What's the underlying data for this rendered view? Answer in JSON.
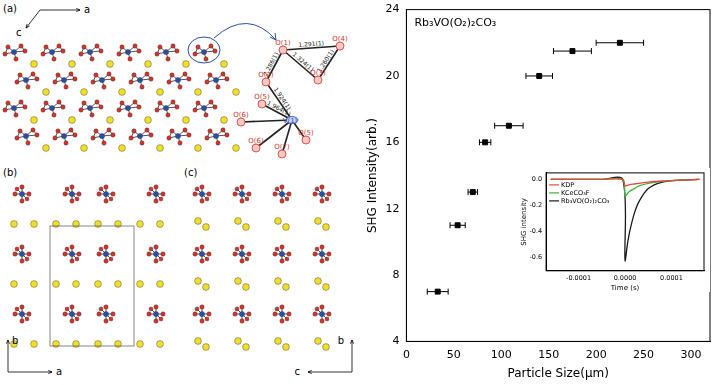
{
  "chart_data": [
    {
      "type": "scatter",
      "title": "Rb₃VO(O₂)₂CO₃",
      "x_label": "Particle Size(μm)",
      "y_label": "SHG Intensity(arb.)",
      "x": [
        33,
        54,
        70,
        83,
        108,
        140,
        175,
        225
      ],
      "values": [
        7,
        11,
        13,
        16,
        17,
        20,
        21.5,
        22
      ],
      "x_error": [
        11,
        8,
        5,
        6,
        15,
        14,
        20,
        25
      ],
      "color": "#000000",
      "marker": "square",
      "xlim": [
        0,
        320
      ],
      "xticks": [
        0,
        50,
        100,
        150,
        200,
        250,
        300
      ],
      "ylim": [
        4,
        24
      ],
      "yticks": [
        4,
        8,
        12,
        16,
        20,
        24
      ],
      "grid": false
    },
    {
      "type": "line",
      "x_label": "Time (s)",
      "y_label": "SHG intensity",
      "x": [
        -0.00016,
        -0.0001,
        -5e-05,
        -5e-06,
        0,
        5e-06,
        1e-05,
        2e-05,
        3e-05,
        5e-05,
        8e-05,
        0.00012,
        0.00016
      ],
      "series": [
        {
          "name": "KDP",
          "color": "#e8483c",
          "values": [
            0,
            0,
            0,
            0,
            -0.05,
            -0.045,
            -0.04,
            -0.035,
            -0.03,
            -0.02,
            -0.012,
            -0.005,
            0
          ]
        },
        {
          "name": "KCeCO₃F",
          "color": "#3cb43c",
          "values": [
            0,
            0,
            0,
            0,
            -0.13,
            -0.11,
            -0.09,
            -0.07,
            -0.05,
            -0.03,
            -0.015,
            -0.005,
            0
          ]
        },
        {
          "name": "Rb₃VO(O₂)₂CO₃",
          "color": "#1a1a1a",
          "values": [
            0,
            0,
            0,
            0,
            -0.62,
            -0.5,
            -0.4,
            -0.26,
            -0.17,
            -0.07,
            -0.02,
            -0.005,
            0
          ]
        }
      ],
      "xlim": [
        -0.00017,
        0.00017
      ],
      "xticks": [
        -0.0001,
        {
          "value": 0,
          "label": "0.0000"
        },
        0.0001
      ],
      "ylim": [
        -0.7,
        0.05
      ],
      "yticks": [
        {
          "value": 0,
          "label": "0.0"
        },
        -0.2,
        -0.4,
        -0.6
      ],
      "legend": "upper left",
      "grid": false
    }
  ],
  "structure_panels": [
    {
      "label": "(a)",
      "axes": [
        "a",
        "c"
      ]
    },
    {
      "label": "(b)",
      "axes": [
        "a",
        "b"
      ]
    },
    {
      "label": "(c)",
      "axes": [
        "c",
        "b"
      ]
    }
  ],
  "detail": {
    "atoms": [
      "O(1)",
      "O(2)",
      "O(3)",
      "O(4)",
      "O(5)",
      "O(6)",
      "O(6)",
      "O(5)",
      "O(7)",
      "V(1)"
    ],
    "bonds": [
      "2.286(1)",
      "1.291(1)",
      "1.260(1)",
      "1.324(1)",
      "1.924(1)",
      "1.964(1)"
    ]
  }
}
